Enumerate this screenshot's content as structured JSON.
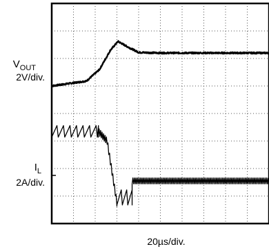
{
  "chart_data": {
    "type": "line",
    "title": "",
    "xlabel": "20µs/div.",
    "grid": true,
    "divisions": {
      "x": 10,
      "y": 8
    },
    "channels": [
      {
        "label_main": "V",
        "label_sub": "OUT",
        "scale": "2V/div.",
        "marker_division": 5.0,
        "points_div": [
          [
            0.0,
            5.0
          ],
          [
            1.6,
            5.18
          ],
          [
            2.2,
            5.6
          ],
          [
            2.7,
            6.3
          ],
          [
            3.05,
            6.62
          ],
          [
            3.5,
            6.42
          ],
          [
            4.0,
            6.22
          ],
          [
            5.0,
            6.2
          ],
          [
            10.0,
            6.2
          ]
        ]
      },
      {
        "label_main": "I",
        "label_sub": "L",
        "scale": "2A/div.",
        "marker_division": 1.75,
        "segments": [
          {
            "x_start": 0.0,
            "x_end": 2.15,
            "level": 3.35,
            "amplitude": 0.42,
            "period": 0.3,
            "shape": "sawtooth"
          },
          {
            "x_start": 2.15,
            "x_end": 2.55,
            "level_start": 3.35,
            "level_end": 3.0,
            "shape": "transition"
          },
          {
            "x_start": 2.55,
            "x_end": 3.0,
            "level_start": 3.0,
            "level_end": 0.75,
            "shape": "transition"
          },
          {
            "x_start": 3.0,
            "x_end": 3.7,
            "level": 0.95,
            "amplitude": 0.55,
            "period": 0.25,
            "shape": "sawtooth"
          },
          {
            "x_start": 3.7,
            "x_end": 10.0,
            "level": 1.55,
            "amplitude": 0.22,
            "period": 0.07,
            "shape": "triangle"
          }
        ]
      }
    ]
  }
}
